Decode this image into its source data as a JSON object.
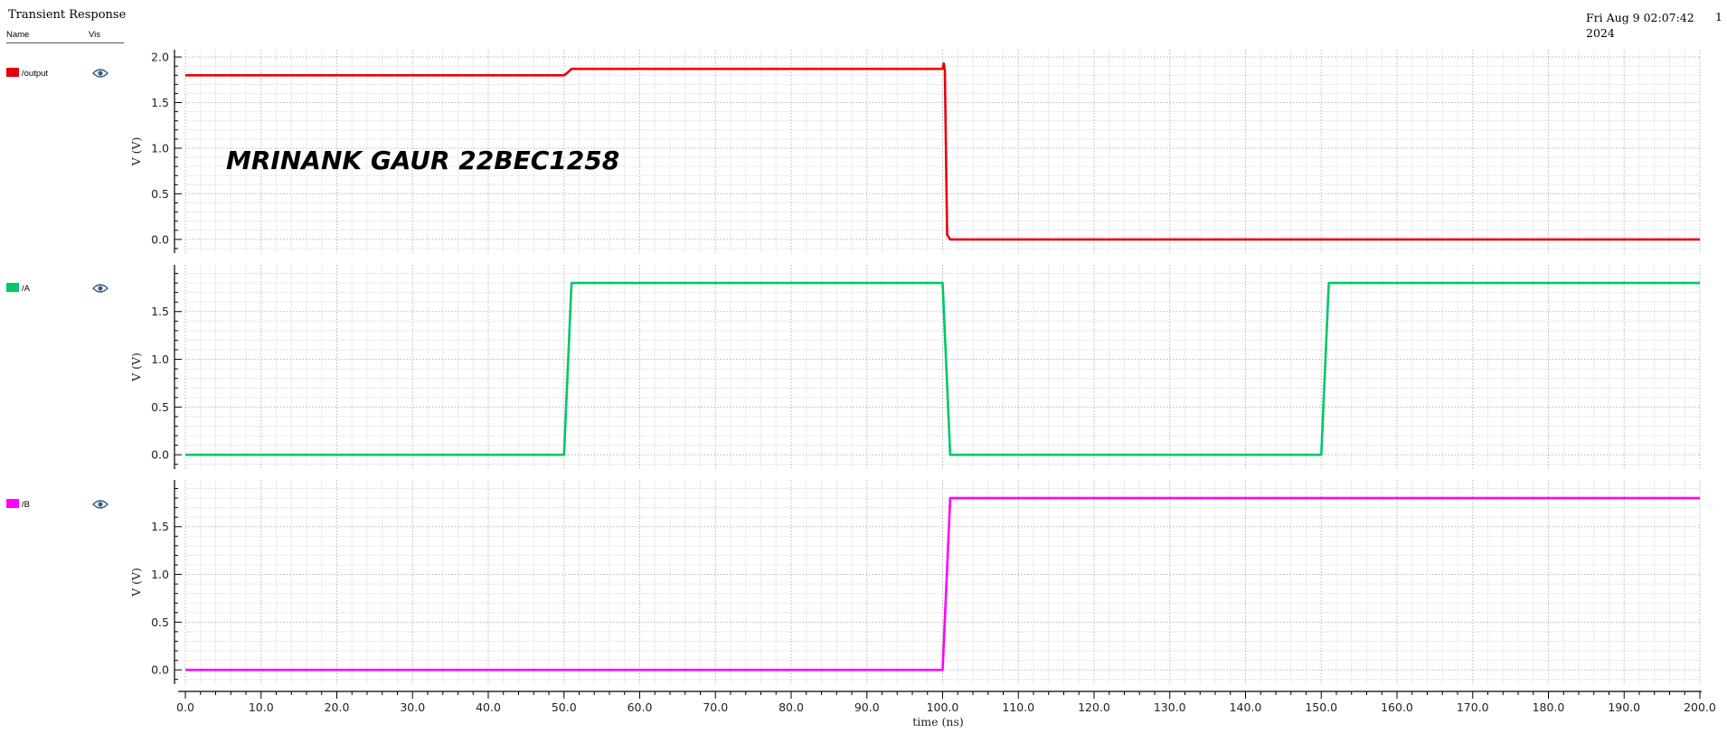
{
  "window": {
    "title": "Transient Response",
    "timestamp_line1": "Fri Aug 9 02:07:42",
    "timestamp_line2": "2024",
    "page_number": "1"
  },
  "legend": {
    "name_header": "Name",
    "vis_header": "Vis",
    "visibility_icon": "eye-icon",
    "traces": [
      {
        "name": "/output",
        "color": "#e8000b"
      },
      {
        "name": "/A",
        "color": "#00c864"
      },
      {
        "name": "/B",
        "color": "#ff00ff"
      }
    ]
  },
  "chart_data": {
    "type": "line",
    "annotation": "MRINANK GAUR 22BEC1258",
    "xlabel": "time (ns)",
    "xlim": [
      0,
      200
    ],
    "xticks": [
      "0.0",
      "10.0",
      "20.0",
      "30.0",
      "40.0",
      "50.0",
      "60.0",
      "70.0",
      "80.0",
      "90.0",
      "100.0",
      "110.0",
      "120.0",
      "130.0",
      "140.0",
      "150.0",
      "160.0",
      "170.0",
      "180.0",
      "190.0",
      "200.0"
    ],
    "grid": true,
    "panels": [
      {
        "series_name": "/output",
        "color": "#e8000b",
        "ylabel": "V (V)",
        "ylim": [
          -0.15,
          2.08
        ],
        "yticks": [
          "0.0",
          "0.5",
          "1.0",
          "1.5",
          "2.0"
        ],
        "x": [
          0,
          50,
          50.5,
          51,
          100,
          100.15,
          100.3,
          100.45,
          100.6,
          101,
          200
        ],
        "y": [
          1.8,
          1.8,
          1.83,
          1.87,
          1.87,
          1.93,
          1.85,
          0.9,
          0.05,
          0.0,
          0.0
        ]
      },
      {
        "series_name": "/A",
        "color": "#00c864",
        "ylabel": "V (V)",
        "ylim": [
          -0.15,
          1.99
        ],
        "yticks": [
          "0.0",
          "0.5",
          "1.0",
          "1.5"
        ],
        "x": [
          0,
          50,
          51,
          100,
          101,
          150,
          151,
          200
        ],
        "y": [
          0,
          0,
          1.8,
          1.8,
          0,
          0,
          1.8,
          1.8
        ]
      },
      {
        "series_name": "/B",
        "color": "#ff00ff",
        "ylabel": "V (V)",
        "ylim": [
          -0.15,
          1.99
        ],
        "yticks": [
          "0.0",
          "0.5",
          "1.0",
          "1.5"
        ],
        "x": [
          0,
          100,
          101,
          200
        ],
        "y": [
          0,
          0,
          1.8,
          1.8
        ]
      }
    ]
  }
}
